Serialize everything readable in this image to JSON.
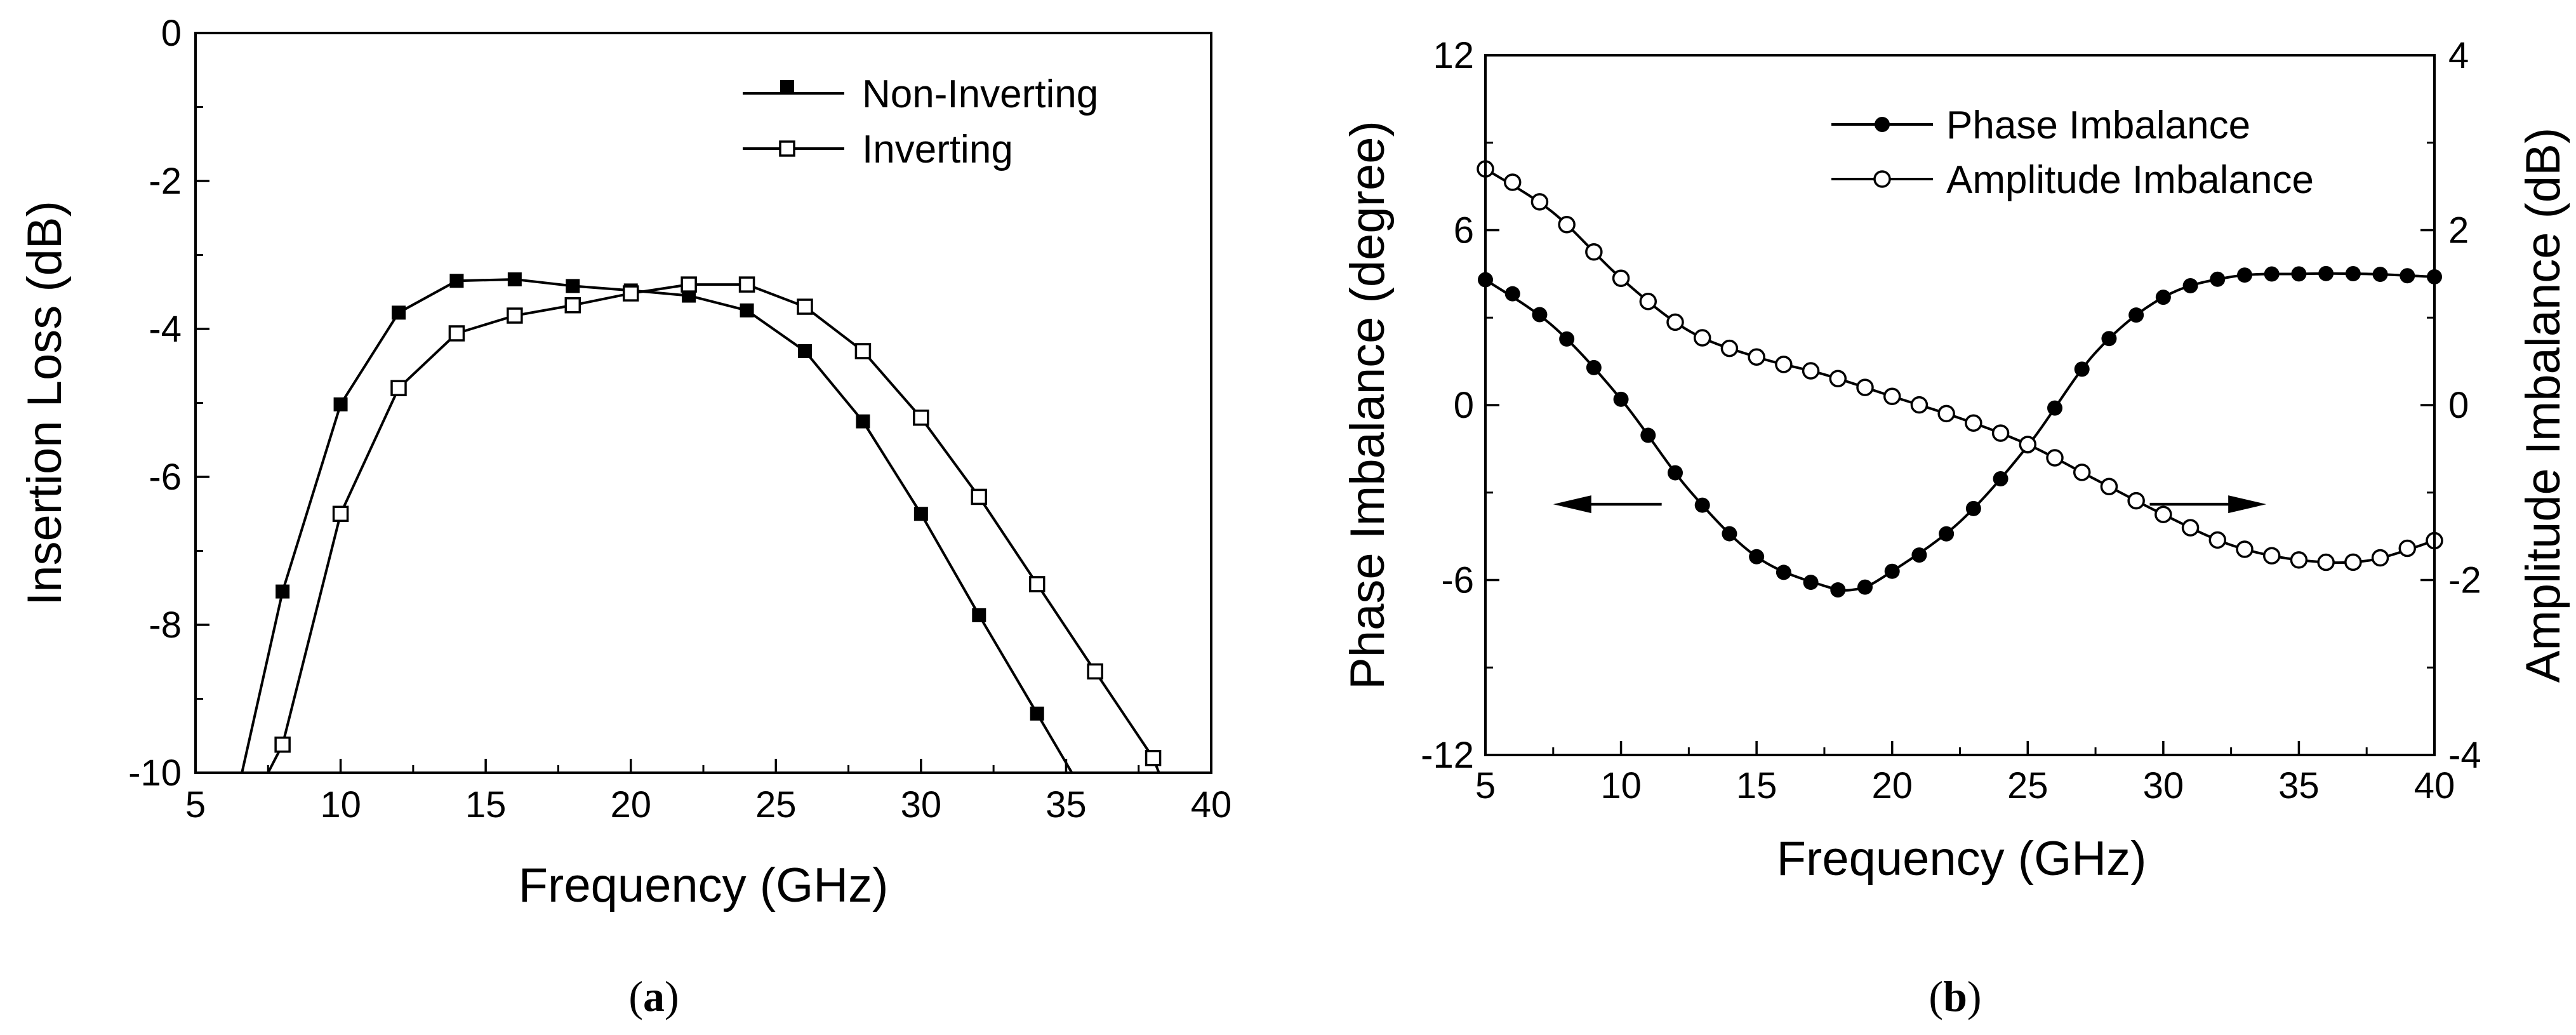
{
  "figure_captions": [
    "a",
    "b"
  ],
  "colors": {
    "line": "#000000",
    "open_marker_fill": "#ffffff",
    "filled_marker": "#000000"
  },
  "chart_data": [
    {
      "id": "a",
      "type": "line",
      "caption": "a",
      "title": "",
      "xlabel": "Frequency (GHz)",
      "ylabel": "Insertion Loss (dB)",
      "xlim": [
        5,
        40
      ],
      "ylim": [
        -10,
        0
      ],
      "xticks": [
        "5",
        "10",
        "15",
        "20",
        "25",
        "30",
        "35",
        "40"
      ],
      "yticks": [
        "-10",
        "-8",
        "-6",
        "-4",
        "-2",
        "0"
      ],
      "legend_position": "top-right",
      "series": [
        {
          "name": "Non-Inverting",
          "marker": "filled-square",
          "x": [
            6.6,
            8,
            10,
            12,
            14,
            16,
            18,
            20,
            22,
            24,
            26,
            28,
            30,
            32,
            34,
            35.2
          ],
          "y": [
            -10,
            -7.55,
            -5.02,
            -3.78,
            -3.35,
            -3.33,
            -3.42,
            -3.48,
            -3.55,
            -3.75,
            -4.3,
            -5.25,
            -6.5,
            -7.87,
            -9.2,
            -10
          ],
          "marked": [
            false,
            true,
            true,
            true,
            true,
            true,
            true,
            true,
            true,
            true,
            true,
            true,
            true,
            true,
            true,
            false
          ]
        },
        {
          "name": "Inverting",
          "marker": "open-square",
          "x": [
            7.5,
            8,
            10,
            12,
            14,
            16,
            18,
            20,
            22,
            24,
            26,
            28,
            30,
            32,
            34,
            36,
            38,
            38.2
          ],
          "y": [
            -10,
            -9.62,
            -6.5,
            -4.8,
            -4.06,
            -3.82,
            -3.68,
            -3.52,
            -3.4,
            -3.4,
            -3.7,
            -4.3,
            -5.2,
            -6.27,
            -7.45,
            -8.63,
            -9.8,
            -10
          ],
          "marked": [
            false,
            true,
            true,
            true,
            true,
            true,
            true,
            true,
            true,
            true,
            true,
            true,
            true,
            true,
            true,
            true,
            true,
            false
          ]
        }
      ]
    },
    {
      "id": "b",
      "type": "line",
      "caption": "b",
      "title": "",
      "xlabel": "Frequency (GHz)",
      "ylabel": "Phase Imbalance (degree)",
      "y2label": "Amplitude Imbalance (dB)",
      "xlim": [
        5,
        40
      ],
      "ylim": [
        -12,
        12
      ],
      "y2lim": [
        -4,
        4
      ],
      "xticks": [
        "5",
        "10",
        "15",
        "20",
        "25",
        "30",
        "35",
        "40"
      ],
      "yticks": [
        "-12",
        "-6",
        "0",
        "6",
        "12"
      ],
      "y2ticks": [
        "-4",
        "-2",
        "0",
        "2",
        "4"
      ],
      "legend_position": "top-right",
      "series": [
        {
          "name": "Phase Imbalance",
          "axis": "left",
          "marker": "filled-circle",
          "x": [
            5,
            7.5,
            10,
            12.5,
            15,
            17.5,
            18.75,
            20,
            22.5,
            25,
            27.5,
            30,
            32.5,
            35,
            37.5,
            40
          ],
          "y": [
            4.3,
            2.7,
            0.2,
            -2.9,
            -5.2,
            -6.2,
            -6.3,
            -5.7,
            -4.0,
            -1.4,
            1.8,
            3.7,
            4.4,
            4.5,
            4.5,
            4.4
          ]
        },
        {
          "name": "Amplitude Imbalance",
          "axis": "right",
          "marker": "open-circle",
          "x": [
            5,
            7.5,
            10,
            12.5,
            15,
            17.5,
            20,
            22.5,
            25,
            27.5,
            30,
            32.5,
            35,
            37.5,
            40
          ],
          "y": [
            2.7,
            2.2,
            1.45,
            0.85,
            0.55,
            0.35,
            0.1,
            -0.15,
            -0.45,
            -0.85,
            -1.25,
            -1.6,
            -1.77,
            -1.78,
            -1.55
          ]
        }
      ],
      "arrows": [
        {
          "points_to": "left-axis",
          "x": [
            11.5,
            7.5
          ],
          "y": [
            -3.4,
            -3.4
          ]
        },
        {
          "points_to": "right-axis",
          "x": [
            29.5,
            33.8
          ],
          "y": [
            -3.4,
            -3.4
          ]
        }
      ]
    }
  ]
}
